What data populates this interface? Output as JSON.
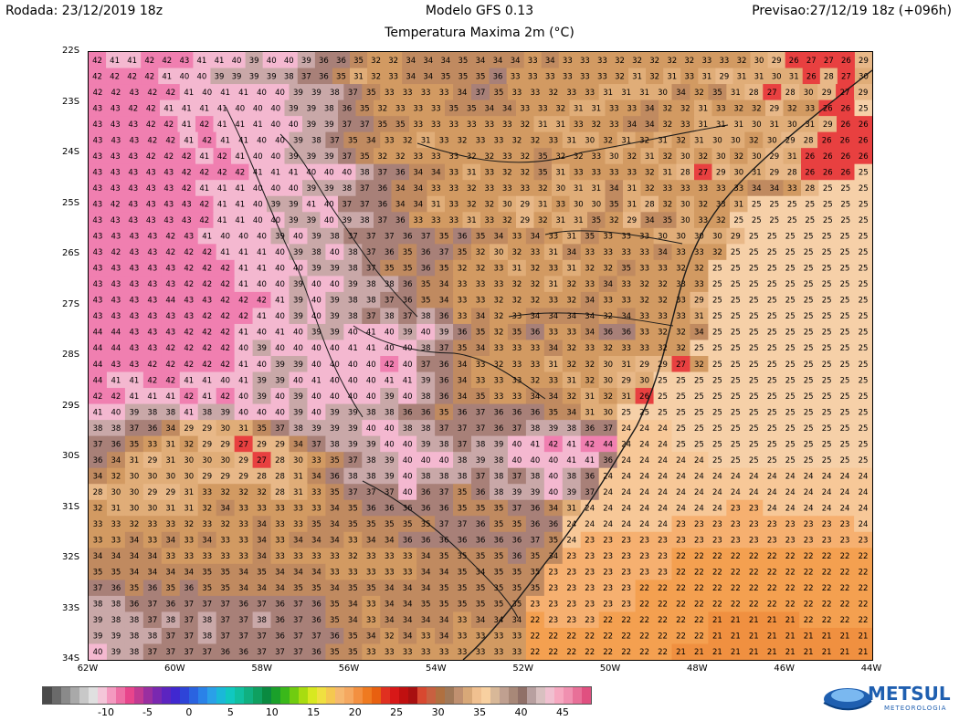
{
  "header": {
    "run": "Rodada: 23/12/2019 18z",
    "model": "Modelo GFS 0.13",
    "forecast": "Previsao:27/12/19 18z (+096h)",
    "variable": "Temperatura Maxima 2m (°C)"
  },
  "latitude_labels": [
    "22S",
    "23S",
    "24S",
    "25S",
    "26S",
    "27S",
    "28S",
    "29S",
    "30S",
    "31S",
    "32S",
    "33S",
    "34S"
  ],
  "longitude_labels": [
    "62W",
    "60W",
    "58W",
    "56W",
    "54W",
    "52W",
    "50W",
    "48W",
    "46W",
    "44W"
  ],
  "colorbar": {
    "ticks": [
      "-10",
      "-5",
      "0",
      "5",
      "10",
      "15",
      "20",
      "25",
      "30",
      "35",
      "40",
      "45"
    ],
    "colors": [
      "#4a4a4a",
      "#6a6a6a",
      "#8a8a8a",
      "#a9a9a9",
      "#c8c8c8",
      "#e0e0e0",
      "#f4c6d9",
      "#f49ac0",
      "#ee6fa5",
      "#e8458c",
      "#c23a92",
      "#9a2fa0",
      "#7a28b0",
      "#5c24c0",
      "#4028d0",
      "#2e44d8",
      "#2a63e0",
      "#2a82e8",
      "#2aa0e8",
      "#1ab8d8",
      "#10c8c0",
      "#10c0a0",
      "#10b080",
      "#0fa060",
      "#0a8a40",
      "#1aa02a",
      "#3ab81a",
      "#70cc10",
      "#a8dc10",
      "#d8e820",
      "#f0e040",
      "#f5c850",
      "#f6b870",
      "#f5a860",
      "#f39040",
      "#ef7a20",
      "#e86010",
      "#e03020",
      "#d81818",
      "#c01010",
      "#a81010",
      "#d84830",
      "#c86040",
      "#b07040",
      "#a07858",
      "#c09070",
      "#d8a878",
      "#f0c090",
      "#f8d0a0",
      "#d8b898",
      "#c0a090",
      "#a88878",
      "#907068",
      "#b8a0a0",
      "#d8c0c0",
      "#f0c0d0",
      "#f6a8c0",
      "#f090b0",
      "#e87098",
      "#e05080"
    ]
  },
  "brand": {
    "name": "METSUL",
    "tagline": "METEOROLOGIA"
  },
  "temperature_grid": {
    "rows": [
      "42 41 41 42 42 43 41 41 40 39 40 40 39 36 36 35 32 32 34 34 34 35 34 34 34 33 34 33 33 33 32 32 32 32 32 33 33 32 30 29 26 27 27 26 29",
      "42 42 42 42 41 40 40 39 39 39 39 38 37 36 35 31 32 33 34 34 35 35 35 36 33 33 33 33 33 33 32 31 32 31 33 31 29 31 31 30 31 26 28 27 30",
      "42 42 43 42 42 41 40 41 41 40 40 39 39 38 37 35 33 33 33 33 34 37 35 33 33 32 33 33 31 31 31 30 34 32 35 31 28 27 28 30 29 27 29",
      "43 43 42 42 41 41 41 41 40 40 40 39 39 38 36 35 32 33 33 33 35 35 34 34 33 33 32 31 31 33 33 34 32 32 31 33 32 32 29 32 33 26 26 25",
      "43 43 43 42 42 41 42 41 41 41 40 40 39 39 37 37 35 35 33 33 33 33 33 33 32 31 31 33 32 33 34 34 32 33 31 31 31 30 31 30 31 29 26 26",
      "43 43 43 42 42 41 42 41 41 40 40 39 38 37 35 34 33 32 31 33 32 33 33 32 32 33 31 30 32 31 32 31 32 31 30 30 32 30 29 28 26 26 26",
      "43 43 43 42 42 42 41 42 41 40 40 39 39 39 37 35 32 32 33 33 33 32 32 33 32 35 32 32 33 30 32 31 32 30 32 30 32 30 29 31 26 26 26 26",
      "43 43 43 43 43 42 42 42 42 41 41 41 40 40 40 38 37 36 34 34 33 31 33 32 32 35 31 33 33 33 33 32 31 28 27 29 30 31 29 28 26 26 26 25",
      "43 43 43 43 43 42 41 41 41 40 40 40 39 39 38 37 36 34 34 33 33 32 33 33 33 32 30 31 31 34 31 32 33 33 33 33 33 34 34 33 28 25 25 25",
      "43 42 43 43 43 43 42 41 41 40 39 39 41 40 37 37 36 34 34 31 33 32 32 30 29 31 33 30 30 35 31 28 32 30 32 33 31 25 25 25 25 25 25 25",
      "43 43 43 43 43 43 42 41 41 40 40 39 39 40 39 38 37 36 33 33 33 31 33 32 29 32 31 31 35 32 29 34 35 30 33 32 25 25 25 25 25 25 25 25",
      "43 43 43 43 42 43 41 40 40 40 39 40 39 38 37 37 37 36 37 35 36 35 34 33 34 33 31 35 33 33 33 30 30 30 30 29 25 25 25 25 25 25 25",
      "43 42 43 43 42 42 42 41 41 41 40 39 38 40 38 37 36 35 36 37 35 32 30 32 33 31 34 33 33 33 33 34 33 33 32 25 25 25 25 25 25 25 25",
      "43 43 43 43 43 42 42 42 41 41 40 40 39 39 38 37 35 35 36 35 32 32 33 31 32 33 31 32 32 35 33 33 32 32 25 25 25 25 25 25 25 25 25",
      "43 43 43 43 43 42 42 42 41 40 40 39 40 40 39 38 38 36 35 34 33 33 33 32 32 31 32 33 34 33 32 32 33 33 25 25 25 25 25 25 25 25 25",
      "43 43 43 43 44 43 43 42 42 42 41 39 40 39 38 38 37 36 35 34 33 33 32 32 32 33 32 34 33 33 32 32 33 29 25 25 25 25 25 25 25 25 25",
      "43 43 43 43 43 43 42 42 42 41 40 39 40 39 38 37 38 37 38 36 33 34 32 33 34 34 34 34 32 34 33 33 33 31 25 25 25 25 25 25 25 25 25",
      "44 44 43 43 43 42 42 42 41 40 41 40 39 39 40 41 40 39 40 39 36 35 32 35 36 33 33 34 36 36 33 32 32 34 25 25 25 25 25 25 25 25 25",
      "44 44 43 43 42 42 42 42 40 39 40 40 40 40 41 41 40 40 38 37 35 34 33 33 33 34 32 33 32 33 33 32 32 25 25 25 25 25 25 25 25 25 25",
      "44 43 43 42 42 42 42 42 41 40 39 39 40 40 40 40 42 40 37 36 34 33 32 33 33 31 32 32 30 31 29 29 27 32 25 25 25 25 25 25 25 25 25",
      "44 41 41 42 42 41 41 40 41 39 39 40 41 40 40 40 41 41 39 36 34 33 33 33 32 33 31 32 30 29 30 25 25 25 25 25 25 25 25 25 25 25 25",
      "42 42 41 41 41 42 41 42 40 39 40 39 40 40 40 40 39 40 38 36 34 35 33 33 34 34 32 31 32 31 26 25 25 25 25 25 25 25 25 25 25 25 25",
      "41 40 39 38 38 41 38 39 40 40 40 39 40 39 39 38 38 36 36 35 36 37 36 36 36 35 34 31 30 25 25 25 25 25 25 25 25 25 25 25 25 25 25",
      "38 38 37 36 34 29 29 30 31 35 37 38 39 39 39 40 40 38 38 37 37 37 36 37 38 39 38 36 37 24 24 24 25 25 25 25 25 25 25 25 25 25 25",
      "37 36 35 33 31 32 29 29 27 29 29 34 37 38 39 39 40 40 39 38 37 38 39 40 41 42 41 42 44 24 24 24 25 25 25 25 25 25 25 25 25 25 25",
      "36 34 31 29 31 30 30 30 29 27 28 30 33 35 37 38 39 40 40 40 38 39 38 40 40 40 41 41 36 24 24 24 24 24 25 25 25 25 25 25 25 25 25",
      "34 32 30 30 30 30 29 29 29 28 28 31 34 36 38 38 39 40 38 38 38 37 38 37 38 40 38 36 24 24 24 24 24 24 24 24 24 24 24 24 24 24 24",
      "28 30 30 29 29 31 33 32 32 32 28 31 33 35 37 37 37 40 36 37 35 36 38 39 39 40 39 37 24 24 24 24 24 24 24 24 24 24 24 24 24 24 24",
      "32 31 30 30 31 31 32 34 33 33 33 33 33 34 35 36 36 36 36 36 35 35 35 37 36 34 31 24 24 24 24 24 24 24 24 23 23 24 24 24 24 24 24",
      "33 33 32 33 33 32 33 32 33 34 33 33 35 34 35 35 35 35 35 37 37 36 35 35 36 36 24 24 24 24 24 24 23 23 23 23 23 23 23 23 23 23 24",
      "33 33 34 33 34 33 34 33 33 34 33 34 34 34 33 34 34 36 36 36 36 36 36 36 37 35 24 23 23 23 23 23 23 23 23 23 23 23 23 23 23 23 23",
      "34 34 34 34 33 33 33 33 33 34 33 33 33 33 32 33 33 33 34 35 35 35 35 36 35 34 23 23 23 23 23 23 22 22 22 22 22 22 22 22 22 22 22",
      "35 35 34 34 34 34 35 35 34 35 34 34 34 33 33 33 33 33 34 34 35 34 35 35 35 23 23 23 23 23 23 23 22 22 22 22 22 22 22 22 22 22 22",
      "37 36 35 36 35 36 35 35 34 34 34 35 35 34 35 35 34 34 34 35 35 35 35 35 35 23 23 23 23 23 22 22 22 22 22 22 22 22 22 22 22 22 22",
      "38 38 36 37 36 37 37 37 36 37 36 37 36 35 34 33 34 34 35 35 35 35 35 35 23 23 23 23 23 23 22 22 22 22 22 22 22 22 22 22 22 22 22",
      "39 38 38 37 38 37 38 37 37 38 36 37 36 35 34 33 34 34 34 34 33 34 34 34 22 23 23 23 22 22 22 22 22 22 21 21 21 21 21 22 22 22 22",
      "39 39 38 38 37 37 38 37 37 37 36 37 37 36 35 34 32 34 33 34 33 33 33 33 22 22 22 22 22 22 22 22 22 22 21 21 21 21 21 21 21 21 21",
      "40 39 38 37 37 37 37 36 36 37 37 37 36 35 35 33 33 33 33 33 33 33 33 33 22 22 22 22 22 22 22 22 21 21 21 21 21 21 21 21 21 21 21"
    ]
  }
}
